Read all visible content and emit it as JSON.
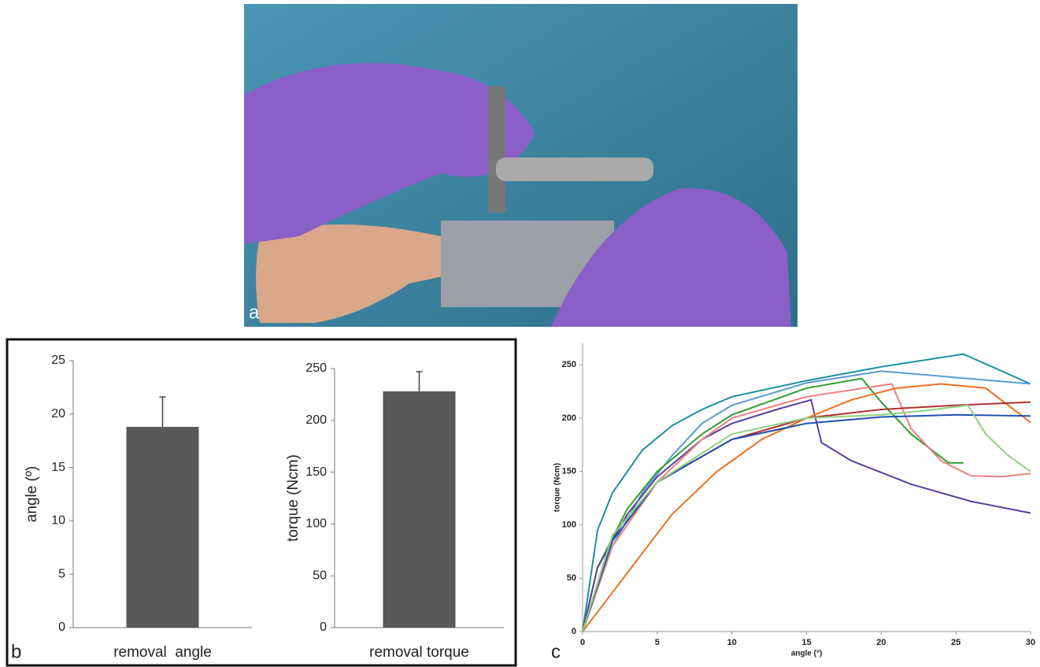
{
  "panel_labels": [
    "a",
    "b",
    "c"
  ],
  "chart_data": [
    {
      "type": "bar",
      "ylabel": "angle (º)",
      "categories": [
        "removal  angle"
      ],
      "values": [
        18.8
      ],
      "errors": [
        2.8
      ],
      "color": "#595959",
      "ylim": [
        0,
        25
      ],
      "yticks": [
        0,
        5,
        10,
        15,
        20,
        25
      ]
    },
    {
      "type": "bar",
      "ylabel": "torque (Ncm)",
      "categories": [
        "removal torque"
      ],
      "values": [
        228
      ],
      "errors": [
        19
      ],
      "color": "#595959",
      "ylim": [
        0,
        250
      ],
      "yticks": [
        0,
        50,
        100,
        150,
        200,
        250
      ]
    },
    {
      "type": "line",
      "xlabel": "angle (°)",
      "ylabel": "torque (Ncm)",
      "xlim": [
        0,
        30
      ],
      "xticks": [
        0,
        5,
        10,
        15,
        20,
        25,
        30
      ],
      "ylim": [
        0,
        270
      ],
      "yticks": [
        0,
        50,
        100,
        150,
        200,
        250
      ],
      "series": [
        {
          "color": "#1a8fa0",
          "x": [
            0,
            1,
            2,
            4,
            6,
            8,
            10,
            15,
            20,
            25.5,
            30
          ],
          "values": [
            0,
            95,
            130,
            170,
            193,
            208,
            220,
            235,
            248,
            260,
            232
          ]
        },
        {
          "color": "#5b9bd5",
          "x": [
            0,
            2,
            4,
            6,
            8,
            10,
            15,
            20,
            25,
            30
          ],
          "values": [
            0,
            80,
            130,
            165,
            195,
            212,
            233,
            244,
            238,
            232
          ]
        },
        {
          "color": "#2ca02c",
          "x": [
            0,
            1,
            3,
            5,
            8,
            10,
            15,
            18.7,
            20,
            22,
            24.5,
            25.5
          ],
          "values": [
            0,
            60,
            115,
            150,
            185,
            203,
            228,
            237,
            215,
            185,
            158,
            158
          ]
        },
        {
          "color": "#5b3fa0",
          "x": [
            0,
            1,
            3,
            5,
            8,
            10,
            13,
            15.3,
            16,
            18,
            22,
            26,
            30
          ],
          "values": [
            0,
            60,
            110,
            145,
            180,
            195,
            208,
            217,
            177,
            160,
            138,
            122,
            111
          ]
        },
        {
          "color": "#f08080",
          "x": [
            0,
            2,
            5,
            8,
            10,
            15,
            20.7,
            22,
            24,
            26,
            28,
            30
          ],
          "values": [
            0,
            80,
            140,
            180,
            200,
            220,
            232,
            190,
            160,
            146,
            145,
            148
          ]
        },
        {
          "color": "#f07020",
          "x": [
            0,
            3,
            6,
            9,
            12,
            15,
            18,
            21,
            24,
            27,
            30
          ],
          "values": [
            0,
            55,
            110,
            150,
            180,
            200,
            217,
            228,
            232,
            228,
            196
          ]
        },
        {
          "color": "#b03030",
          "x": [
            0,
            2,
            5,
            10,
            15,
            20,
            25,
            30
          ],
          "values": [
            0,
            90,
            140,
            180,
            200,
            208,
            212,
            215
          ]
        },
        {
          "color": "#2050b0",
          "x": [
            0,
            2,
            5,
            10,
            15,
            20,
            25,
            30
          ],
          "values": [
            0,
            85,
            140,
            180,
            195,
            201,
            203,
            202
          ]
        },
        {
          "color": "#8fd080",
          "x": [
            0,
            2,
            5,
            10,
            15,
            20,
            23,
            25.8,
            27,
            28.5,
            30
          ],
          "values": [
            0,
            90,
            140,
            185,
            200,
            203,
            207,
            212,
            185,
            165,
            150
          ]
        }
      ]
    }
  ]
}
